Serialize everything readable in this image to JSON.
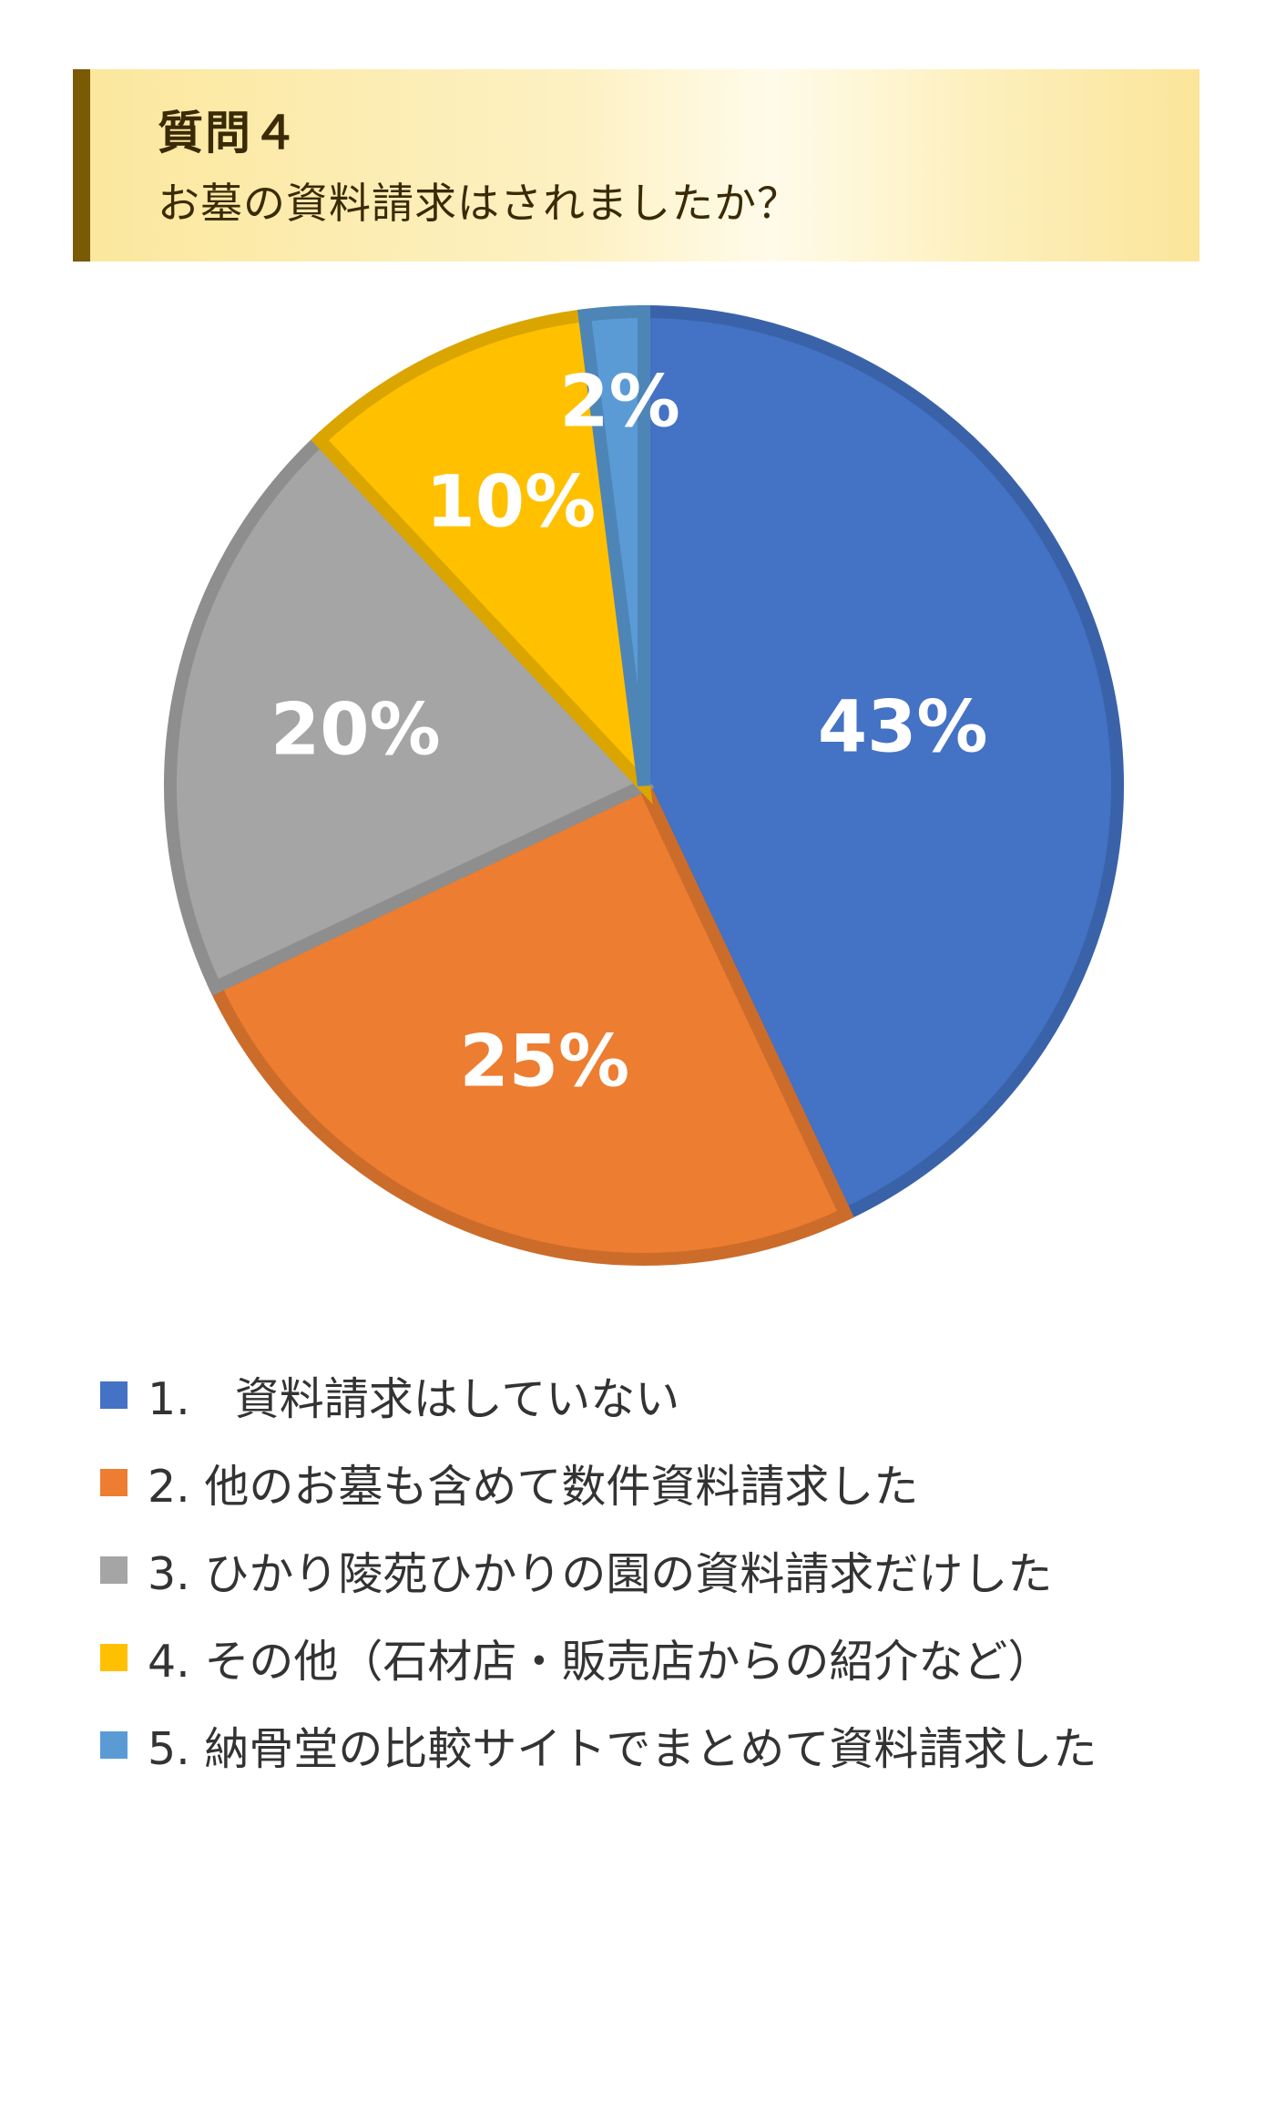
{
  "header": {
    "question": "質問４",
    "subtitle": "お墓の資料請求はされましたか？"
  },
  "colors": {
    "header_bar": "#7a5a05",
    "slice_1": "#4472c4",
    "slice_2": "#ed7d31",
    "slice_3": "#a5a5a5",
    "slice_4": "#ffc000",
    "slice_5": "#5b9bd5"
  },
  "chart_data": {
    "type": "pie",
    "categories": [
      "1.　資料請求はしていない",
      "2. 他のお墓も含めて数件資料請求した",
      "3. ひかり陵苑ひかりの園の資料請求だけした",
      "4. その他（石材店・販売店からの紹介など）",
      "5. 納骨堂の比較サイトでまとめて資料請求した"
    ],
    "values": [
      43,
      25,
      20,
      10,
      2
    ],
    "value_labels": [
      "43%",
      "25%",
      "20%",
      "10%",
      "2%"
    ],
    "colors": [
      "#4472c4",
      "#ed7d31",
      "#a5a5a5",
      "#ffc000",
      "#5b9bd5"
    ],
    "start": "top",
    "direction": "clockwise",
    "legend_position": "bottom"
  }
}
